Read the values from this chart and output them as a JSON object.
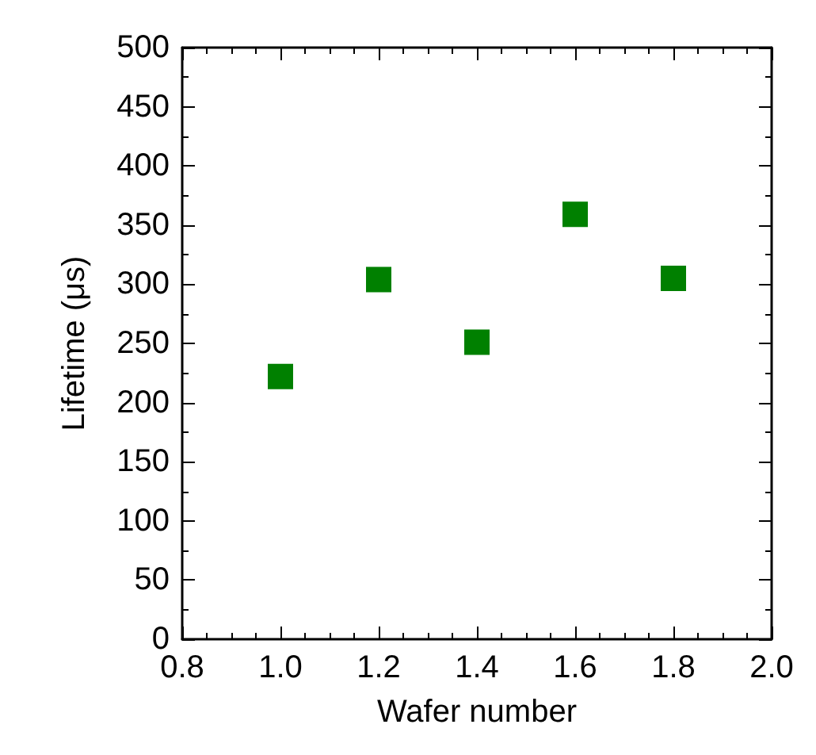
{
  "chart_data": {
    "type": "scatter",
    "xlabel": "Wafer number",
    "ylabel": "Lifetime (μs)",
    "x": [
      1.0,
      1.2,
      1.4,
      1.6,
      1.8
    ],
    "series": [
      {
        "color": "#008000",
        "values": [
          222,
          304,
          251,
          359,
          305
        ]
      }
    ],
    "xlim": [
      0.8,
      2.0
    ],
    "xticks": [
      {
        "value": 0.8,
        "label": "0.8"
      },
      {
        "value": 1.0,
        "label": "1.0"
      },
      {
        "value": 1.2,
        "label": "1.2"
      },
      {
        "value": 1.4,
        "label": "1.4"
      },
      {
        "value": 1.6,
        "label": "1.6"
      },
      {
        "value": 1.8,
        "label": "1.8"
      },
      {
        "value": 2.0,
        "label": "2.0"
      }
    ],
    "ylim": [
      0,
      500
    ],
    "yticks": [
      0,
      50,
      100,
      150,
      200,
      250,
      300,
      350,
      400,
      450,
      500
    ],
    "grid": false,
    "marker": "square"
  }
}
